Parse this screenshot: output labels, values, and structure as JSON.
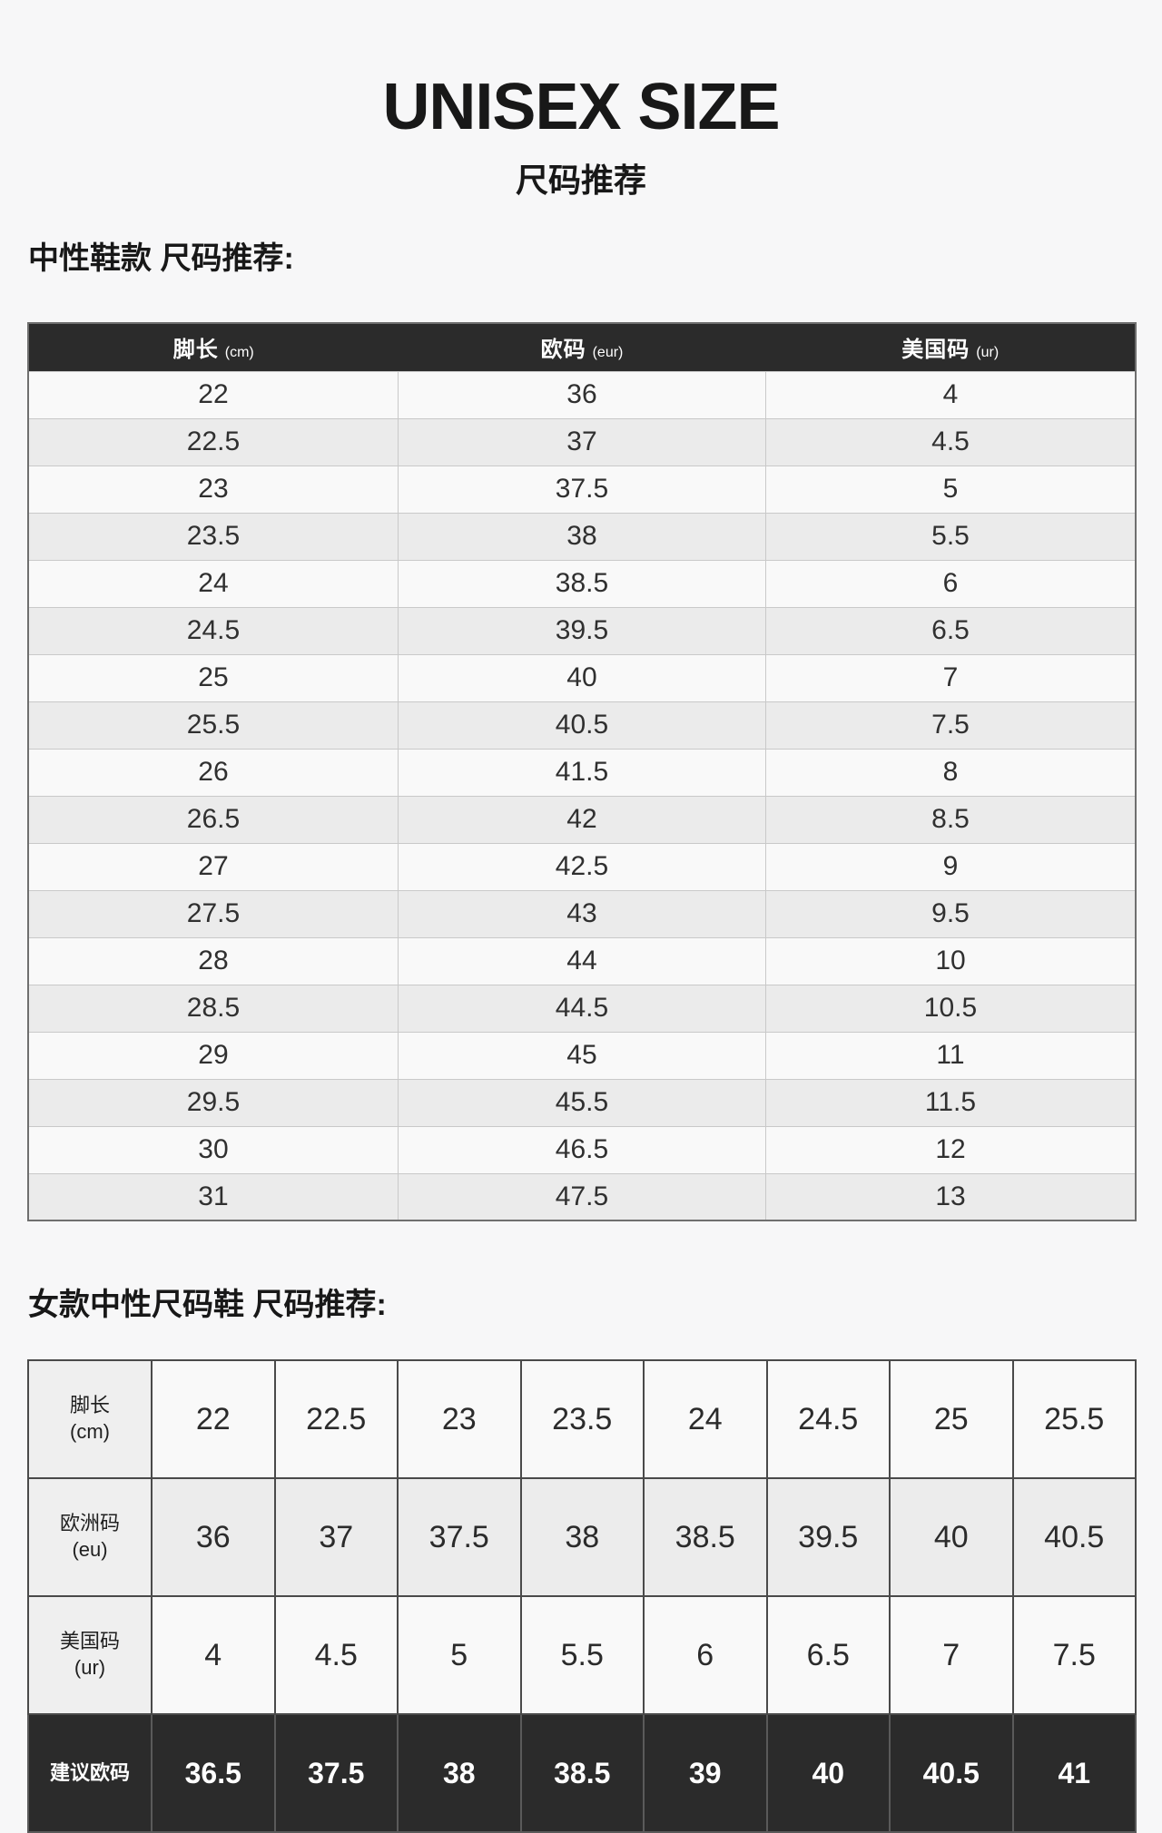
{
  "page": {
    "title": "UNISEX SIZE",
    "subtitle": "尺码推荐"
  },
  "unisex_section": {
    "heading": "中性鞋款 尺码推荐:",
    "table": {
      "columns": [
        {
          "label": "脚长",
          "unit": "(cm)"
        },
        {
          "label": "欧码",
          "unit": "(eur)"
        },
        {
          "label": "美国码",
          "unit": "(ur)"
        }
      ],
      "rows": [
        [
          "22",
          "36",
          "4"
        ],
        [
          "22.5",
          "37",
          "4.5"
        ],
        [
          "23",
          "37.5",
          "5"
        ],
        [
          "23.5",
          "38",
          "5.5"
        ],
        [
          "24",
          "38.5",
          "6"
        ],
        [
          "24.5",
          "39.5",
          "6.5"
        ],
        [
          "25",
          "40",
          "7"
        ],
        [
          "25.5",
          "40.5",
          "7.5"
        ],
        [
          "26",
          "41.5",
          "8"
        ],
        [
          "26.5",
          "42",
          "8.5"
        ],
        [
          "27",
          "42.5",
          "9"
        ],
        [
          "27.5",
          "43",
          "9.5"
        ],
        [
          "28",
          "44",
          "10"
        ],
        [
          "28.5",
          "44.5",
          "10.5"
        ],
        [
          "29",
          "45",
          "11"
        ],
        [
          "29.5",
          "45.5",
          "11.5"
        ],
        [
          "30",
          "46.5",
          "12"
        ],
        [
          "31",
          "47.5",
          "13"
        ]
      ]
    }
  },
  "women_section": {
    "heading": "女款中性尺码鞋 尺码推荐:",
    "table": {
      "rows": [
        {
          "label": "脚长",
          "unit": "(cm)",
          "style": "light",
          "values": [
            "22",
            "22.5",
            "23",
            "23.5",
            "24",
            "24.5",
            "25",
            "25.5"
          ]
        },
        {
          "label": "欧洲码",
          "unit": "(eu)",
          "style": "gray",
          "values": [
            "36",
            "37",
            "37.5",
            "38",
            "38.5",
            "39.5",
            "40",
            "40.5"
          ]
        },
        {
          "label": "美国码",
          "unit": "(ur)",
          "style": "light",
          "values": [
            "4",
            "4.5",
            "5",
            "5.5",
            "6",
            "6.5",
            "7",
            "7.5"
          ]
        },
        {
          "label": "建议欧码",
          "unit": "",
          "style": "dark",
          "values": [
            "36.5",
            "37.5",
            "38",
            "38.5",
            "39",
            "40",
            "40.5",
            "41"
          ]
        }
      ]
    }
  },
  "colors": {
    "page_bg": "#f7f7f8",
    "table_header_bg": "#2b2b2b",
    "header_text": "#ffffff",
    "row_light": "#f9f9f9",
    "row_gray": "#ebebeb",
    "suggested_row_bg": "#2b2b2b",
    "heading_text": "#181818"
  }
}
